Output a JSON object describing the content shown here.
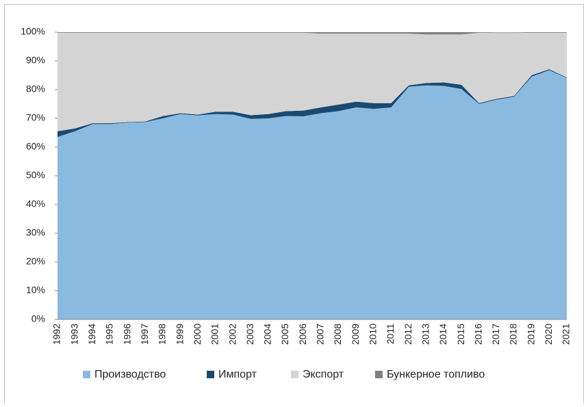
{
  "chart_data": {
    "type": "stacked_area",
    "categories": [
      "1992",
      "1993",
      "1994",
      "1995",
      "1996",
      "1997",
      "1998",
      "1999",
      "2000",
      "2001",
      "2002",
      "2003",
      "2004",
      "2005",
      "2006",
      "2007",
      "2008",
      "2009",
      "2010",
      "2011",
      "2012",
      "2013",
      "2014",
      "2015",
      "2016",
      "2017",
      "2018",
      "2019",
      "2020",
      "2021"
    ],
    "series": [
      {
        "name": "Производство",
        "color": "#8bbae1",
        "values": [
          63.5,
          65.5,
          68,
          68,
          68.5,
          68.7,
          70,
          71.5,
          71,
          71.5,
          71.3,
          69.8,
          70,
          70.8,
          70.7,
          71.8,
          72.5,
          73.8,
          73.3,
          73.8,
          81,
          81.5,
          81.3,
          80.2,
          75,
          76.5,
          77.5,
          84.5,
          86.8,
          84
        ]
      },
      {
        "name": "Импорт",
        "color": "#1a4a70",
        "values": [
          2,
          1,
          0.3,
          0.3,
          0.2,
          0.2,
          0.8,
          0.3,
          0.3,
          0.8,
          1,
          1.3,
          1.5,
          1.7,
          2,
          2,
          2.3,
          2,
          2,
          1.5,
          0.5,
          0.8,
          1.2,
          1.5,
          0.3,
          0.3,
          0.3,
          0.5,
          0.3,
          0.2
        ]
      },
      {
        "name": "Экспорт",
        "color": "#d4d4d4",
        "values": [
          34.3,
          33.3,
          31.5,
          31.5,
          31.1,
          30.9,
          29.0,
          28.0,
          28.5,
          27.5,
          27.5,
          28.7,
          28.3,
          27.3,
          27.1,
          25.7,
          24.7,
          23.7,
          24.2,
          24.2,
          18.0,
          16.9,
          16.7,
          17.5,
          24.5,
          22.9,
          21.9,
          14.8,
          12.7,
          15.6
        ]
      },
      {
        "name": "Бункерное топливо",
        "color": "#808080",
        "values": [
          0.2,
          0.2,
          0.2,
          0.2,
          0.2,
          0.2,
          0.2,
          0.2,
          0.2,
          0.2,
          0.2,
          0.2,
          0.2,
          0.2,
          0.2,
          0.5,
          0.5,
          0.5,
          0.5,
          0.5,
          0.5,
          0.8,
          0.8,
          0.8,
          0.2,
          0.2,
          0.2,
          0.2,
          0.2,
          0.2
        ]
      }
    ],
    "ylim": [
      0,
      100
    ],
    "yticks": [
      {
        "value": 0,
        "label": "0%"
      },
      {
        "value": 10,
        "label": "10%"
      },
      {
        "value": 20,
        "label": "20%"
      },
      {
        "value": 30,
        "label": "30%"
      },
      {
        "value": 40,
        "label": "40%"
      },
      {
        "value": 50,
        "label": "50%"
      },
      {
        "value": 60,
        "label": "60%"
      },
      {
        "value": 70,
        "label": "70%"
      },
      {
        "value": 80,
        "label": "80%"
      },
      {
        "value": 90,
        "label": "90%"
      },
      {
        "value": 100,
        "label": "100%"
      }
    ],
    "legend": "bottom"
  }
}
